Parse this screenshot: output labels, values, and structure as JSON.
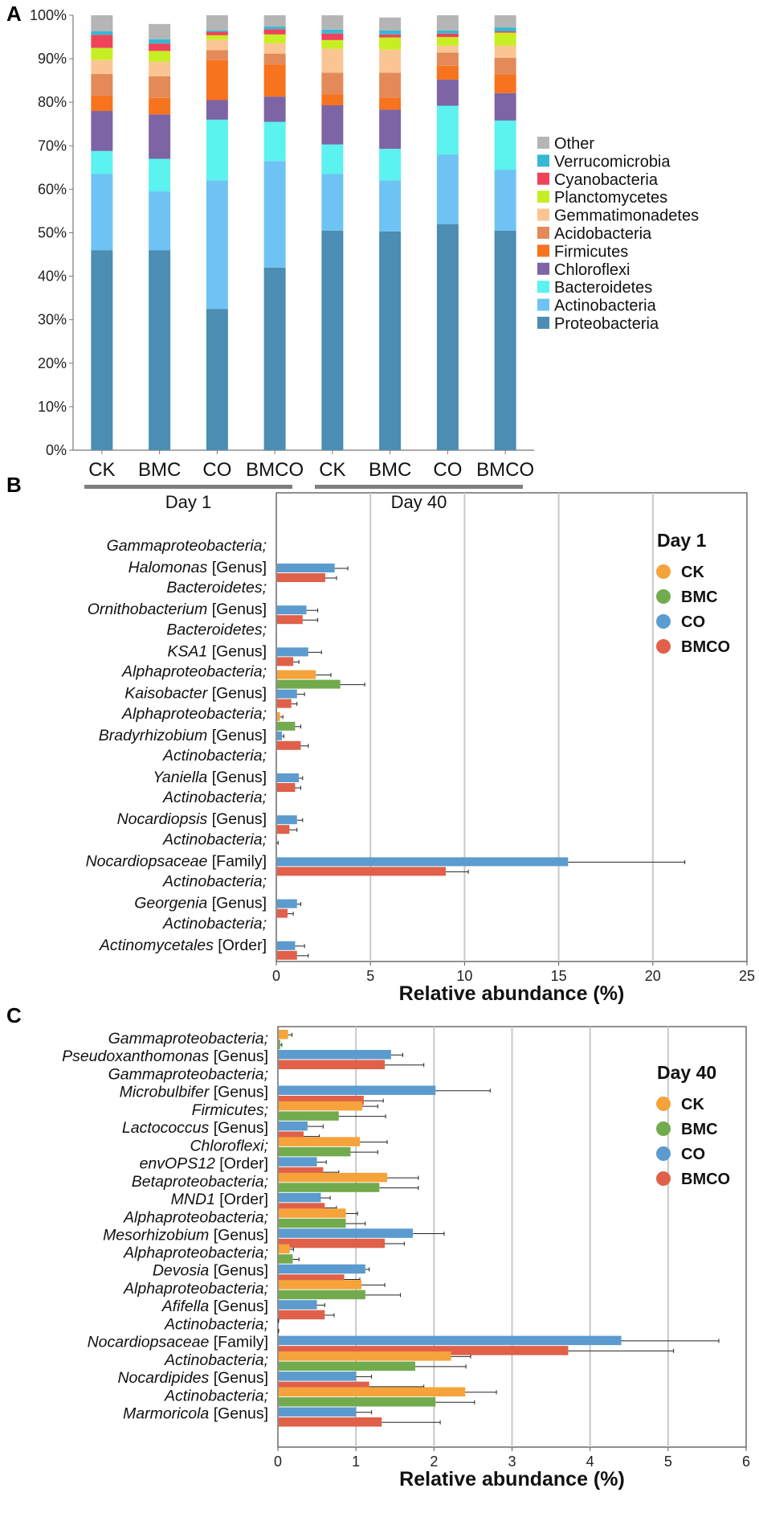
{
  "panel_labels": [
    "A",
    "B",
    "C"
  ],
  "chart_data": [
    {
      "type": "bar",
      "stacked": true,
      "normalized": true,
      "categories": [
        "CK",
        "BMC",
        "CO",
        "BMCO",
        "CK",
        "BMC",
        "CO",
        "BMCO"
      ],
      "groups": [
        {
          "label": "Day 1",
          "members": [
            0,
            1,
            2,
            3
          ]
        },
        {
          "label": "Day 40",
          "members": [
            4,
            5,
            6,
            7
          ]
        }
      ],
      "ylim": [
        0,
        100
      ],
      "yticks": [
        "0%",
        "10%",
        "20%",
        "30%",
        "40%",
        "50%",
        "60%",
        "70%",
        "80%",
        "90%",
        "100%"
      ],
      "legend_position": "right",
      "series": [
        {
          "name": "Proteobacteria",
          "color": "#4b8db3",
          "values": [
            46,
            46,
            32.5,
            42,
            50.5,
            50.3,
            52,
            50.5
          ]
        },
        {
          "name": "Actinobacteria",
          "color": "#6ec3f4",
          "values": [
            17.5,
            13.5,
            29.5,
            24.5,
            13,
            11.7,
            16,
            14
          ]
        },
        {
          "name": "Bacteroidetes",
          "color": "#5bf2f0",
          "values": [
            5.3,
            7.5,
            14,
            9,
            6.8,
            7.3,
            11.2,
            11.3
          ]
        },
        {
          "name": "Chloroflexi",
          "color": "#7d64a4",
          "values": [
            9.2,
            10.2,
            4.5,
            5.8,
            9,
            9,
            6,
            6.3
          ]
        },
        {
          "name": "Firmicutes",
          "color": "#f7731d",
          "values": [
            3.5,
            3.8,
            9.2,
            7.4,
            2.5,
            2.8,
            3.2,
            4.3
          ]
        },
        {
          "name": "Acidobacteria",
          "color": "#e48a59",
          "values": [
            5,
            5,
            2.3,
            2.5,
            5,
            5.7,
            3,
            3.8
          ]
        },
        {
          "name": "Gemmatimonadetes",
          "color": "#fac593",
          "values": [
            3.2,
            3.3,
            2.4,
            2.4,
            5.5,
            5.3,
            1.6,
            2.8
          ]
        },
        {
          "name": "Planctomycetes",
          "color": "#c7ee23",
          "values": [
            2.8,
            2.5,
            1,
            2,
            2,
            2.8,
            2,
            3
          ]
        },
        {
          "name": "Cyanobacteria",
          "color": "#ee4359",
          "values": [
            3,
            1.7,
            0.8,
            1.2,
            1.5,
            0.7,
            0.8,
            0.3
          ]
        },
        {
          "name": "Verrucomicrobia",
          "color": "#35b8d4",
          "values": [
            0.8,
            1,
            0.3,
            0.6,
            0.9,
            0.9,
            0.7,
            0.9
          ]
        },
        {
          "name": "Other",
          "color": "#b5b5b5",
          "values": [
            3.7,
            3.5,
            3.5,
            2.6,
            3.3,
            3,
            3.5,
            2.8
          ]
        }
      ]
    },
    {
      "type": "bar",
      "orientation": "horizontal",
      "legend_title": "Day 1",
      "legend_position": "top-right",
      "xlabel": "Relative abundance (%)",
      "xlim": [
        0,
        25
      ],
      "xticks": [
        "0",
        "5",
        "10",
        "15",
        "20",
        "25"
      ],
      "grid": true,
      "series_names": [
        "CK",
        "BMC",
        "CO",
        "BMCO"
      ],
      "series_colors": [
        "#f5a33a",
        "#72ab4e",
        "#5b9bcf",
        "#e06049"
      ],
      "categories": [
        {
          "taxon": "Gammaproteobacteria;",
          "name": "Halomonas",
          "rank": "[Genus]",
          "values": [
            0,
            0,
            3.1,
            2.6
          ],
          "errors": [
            0,
            0,
            0.7,
            0.6
          ]
        },
        {
          "taxon": "Bacteroidetes;",
          "name": "Ornithobacterium",
          "rank": "[Genus]",
          "values": [
            0,
            0,
            1.6,
            1.4
          ],
          "errors": [
            0,
            0,
            0.6,
            0.8
          ]
        },
        {
          "taxon": "Bacteroidetes;",
          "name": "KSA1",
          "rank": "[Genus]",
          "values": [
            0,
            0,
            1.7,
            0.9
          ],
          "errors": [
            0,
            0,
            0.7,
            0.3
          ]
        },
        {
          "taxon": "Alphaproteobacteria;",
          "name": "Kaisobacter",
          "rank": "[Genus]",
          "values": [
            2.1,
            3.4,
            1.1,
            0.8
          ],
          "errors": [
            0.8,
            1.3,
            0.4,
            0.3
          ]
        },
        {
          "taxon": "Alphaproteobacteria;",
          "name": "Bradyrhizobium",
          "rank": "[Genus]",
          "values": [
            0.2,
            1,
            0.3,
            1.3
          ],
          "errors": [
            0.15,
            0.3,
            0.1,
            0.4
          ]
        },
        {
          "taxon": "Actinobacteria;",
          "name": "Yaniella",
          "rank": "[Genus]",
          "values": [
            0,
            0,
            1.2,
            1
          ],
          "errors": [
            0,
            0,
            0.2,
            0.3
          ]
        },
        {
          "taxon": "Actinobacteria;",
          "name": "Nocardiopsis",
          "rank": "[Genus]",
          "values": [
            0,
            0,
            1.1,
            0.7
          ],
          "errors": [
            0,
            0,
            0.3,
            0.4
          ]
        },
        {
          "taxon": "Actinobacteria;",
          "name": "Nocardiopsaceae",
          "rank": "[Family]",
          "values": [
            0,
            0,
            15.5,
            9
          ],
          "errors": [
            0.1,
            0,
            6.2,
            1.2
          ]
        },
        {
          "taxon": "Actinobacteria;",
          "name": "Georgenia",
          "rank": "[Genus]",
          "values": [
            0,
            0,
            1.1,
            0.6
          ],
          "errors": [
            0,
            0,
            0.2,
            0.3
          ]
        },
        {
          "taxon": "Actinobacteria;",
          "name": "Actinomycetales",
          "rank": "[Order]",
          "values": [
            0,
            0,
            1,
            1.1
          ],
          "errors": [
            0,
            0,
            0.5,
            0.6
          ]
        }
      ]
    },
    {
      "type": "bar",
      "orientation": "horizontal",
      "legend_title": "Day 40",
      "legend_position": "top-right",
      "xlabel": "Relative abundance (%)",
      "xlim": [
        0,
        6
      ],
      "xticks": [
        "0",
        "1",
        "2",
        "3",
        "4",
        "5",
        "6"
      ],
      "grid": true,
      "series_names": [
        "CK",
        "BMC",
        "CO",
        "BMCO"
      ],
      "series_colors": [
        "#f5a33a",
        "#72ab4e",
        "#5b9bcf",
        "#e06049"
      ],
      "categories": [
        {
          "taxon": "Gammaproteobacteria;",
          "name": "Pseudoxanthomonas",
          "rank": "[Genus]",
          "values": [
            0.13,
            0.03,
            1.45,
            1.37
          ],
          "errors": [
            0.05,
            0.02,
            0.15,
            0.5
          ]
        },
        {
          "taxon": "Gammaproteobacteria;",
          "name": "Microbulbifer",
          "rank": "[Genus]",
          "values": [
            0,
            0,
            2.02,
            1.1
          ],
          "errors": [
            0,
            0,
            0.7,
            0.25
          ]
        },
        {
          "taxon": "Firmicutes;",
          "name": "Lactococcus",
          "rank": "[Genus]",
          "values": [
            1.08,
            0.78,
            0.38,
            0.33
          ],
          "errors": [
            0.2,
            0.6,
            0.2,
            0.2
          ]
        },
        {
          "taxon": "Chloroflexi;",
          "name": "envOPS12",
          "rank": "[Order]",
          "values": [
            1.05,
            0.93,
            0.5,
            0.58
          ],
          "errors": [
            0.35,
            0.35,
            0.12,
            0.2
          ]
        },
        {
          "taxon": "Betaproteobacteria;",
          "name": "MND1",
          "rank": "[Order]",
          "values": [
            1.4,
            1.3,
            0.55,
            0.6
          ],
          "errors": [
            0.4,
            0.5,
            0.12,
            0.15
          ]
        },
        {
          "taxon": "Alphaproteobacteria;",
          "name": "Mesorhizobium",
          "rank": "[Genus]",
          "values": [
            0.87,
            0.87,
            1.73,
            1.37
          ],
          "errors": [
            0.15,
            0.25,
            0.4,
            0.25
          ]
        },
        {
          "taxon": "Alphaproteobacteria;",
          "name": "Devosia",
          "rank": "[Genus]",
          "values": [
            0.15,
            0.19,
            1.12,
            0.85
          ],
          "errors": [
            0.05,
            0.08,
            0.05,
            0.2
          ]
        },
        {
          "taxon": "Alphaproteobacteria;",
          "name": "Afifella",
          "rank": "[Genus]",
          "values": [
            1.07,
            1.12,
            0.5,
            0.6
          ],
          "errors": [
            0.3,
            0.45,
            0.1,
            0.12
          ]
        },
        {
          "taxon": "Actinobacteria;",
          "name": "Nocardiopsaceae",
          "rank": "[Family]",
          "values": [
            0,
            0,
            4.4,
            3.72
          ],
          "errors": [
            0.01,
            0.01,
            1.25,
            1.35
          ]
        },
        {
          "taxon": "Actinobacteria;",
          "name": "Nocardipides",
          "rank": "[Genus]",
          "values": [
            2.22,
            1.76,
            1.0,
            1.17
          ],
          "errors": [
            0.25,
            0.65,
            0.2,
            0.7
          ]
        },
        {
          "taxon": "Actinobacteria;",
          "name": "Marmoricola",
          "rank": "[Genus]",
          "values": [
            2.4,
            2.02,
            1.0,
            1.33
          ],
          "errors": [
            0.4,
            0.5,
            0.2,
            0.75
          ]
        }
      ]
    }
  ]
}
